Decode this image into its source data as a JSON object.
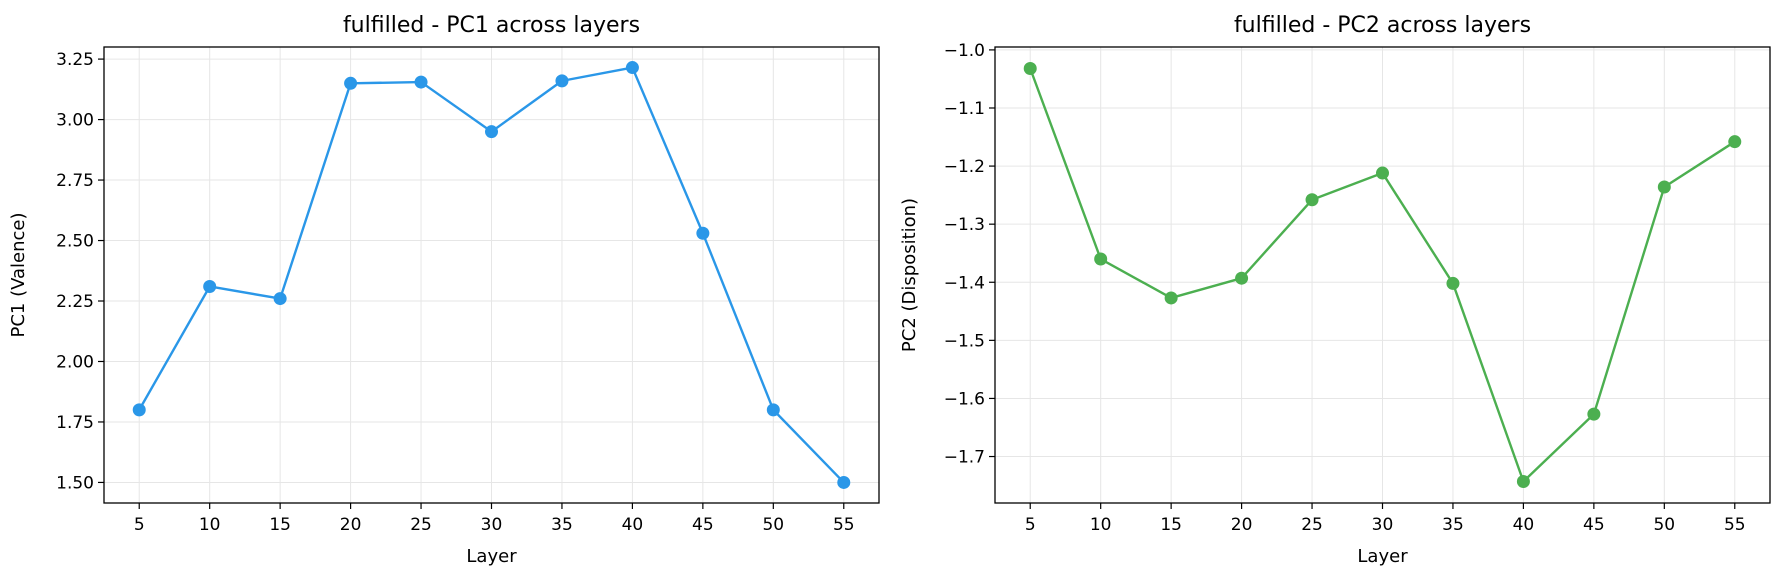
{
  "chart_data": [
    {
      "type": "line",
      "title": "fulfilled - PC1 across layers",
      "xlabel": "Layer",
      "ylabel": "PC1 (Valence)",
      "x": [
        5,
        10,
        15,
        20,
        25,
        30,
        35,
        40,
        45,
        50,
        55
      ],
      "series": [
        {
          "values": [
            1.8,
            2.31,
            2.26,
            3.15,
            3.155,
            2.95,
            3.16,
            3.215,
            2.53,
            1.8,
            1.5
          ],
          "color": "#2a97e8"
        }
      ],
      "xlim": [
        2.5,
        57.5
      ],
      "ylim": [
        1.415,
        3.3
      ],
      "xticks": [
        "5",
        "10",
        "15",
        "20",
        "25",
        "30",
        "35",
        "40",
        "45",
        "50",
        "55"
      ],
      "yticks": [
        "1.50",
        "1.75",
        "2.00",
        "2.25",
        "2.50",
        "2.75",
        "3.00",
        "3.25"
      ],
      "grid": true
    },
    {
      "type": "line",
      "title": "fulfilled - PC2 across layers",
      "xlabel": "Layer",
      "ylabel": "PC2 (Disposition)",
      "x": [
        5,
        10,
        15,
        20,
        25,
        30,
        35,
        40,
        45,
        50,
        55
      ],
      "series": [
        {
          "values": [
            -1.032,
            -1.36,
            -1.427,
            -1.393,
            -1.258,
            -1.212,
            -1.402,
            -1.743,
            -1.627,
            -1.236,
            -1.158
          ],
          "color": "#4caf50"
        }
      ],
      "xlim": [
        2.5,
        57.5
      ],
      "ylim": [
        -1.78,
        -0.995
      ],
      "xticks": [
        "5",
        "10",
        "15",
        "20",
        "25",
        "30",
        "35",
        "40",
        "45",
        "50",
        "55"
      ],
      "yticks": [
        "−1.0",
        "−1.1",
        "−1.2",
        "−1.3",
        "−1.4",
        "−1.5",
        "−1.6",
        "−1.7"
      ],
      "grid": true
    }
  ]
}
